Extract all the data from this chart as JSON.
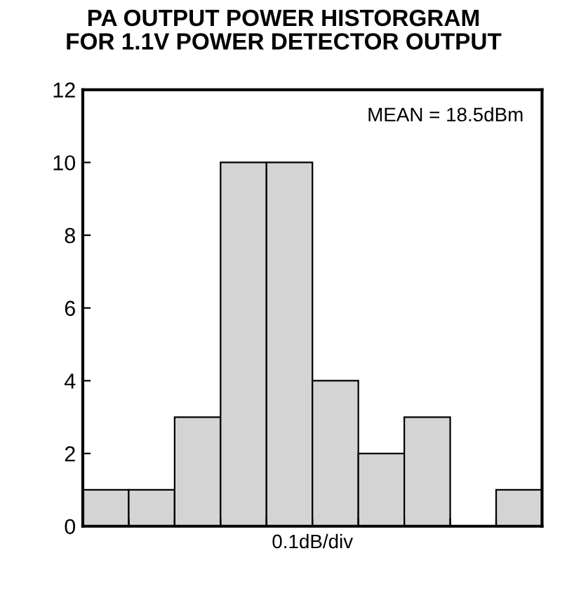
{
  "chart_data": {
    "type": "bar",
    "title": "PA OUTPUT POWER HISTORGRAM\nFOR 1.1V POWER DETECTOR OUTPUT",
    "xlabel": "0.1dB/div",
    "categories": [
      null,
      null,
      null,
      null,
      null,
      null,
      null,
      null,
      null,
      null
    ],
    "values": [
      1,
      1,
      3,
      10,
      10,
      4,
      2,
      3,
      0,
      1
    ],
    "color": "#d4d4d4",
    "ylim": [
      0,
      12
    ],
    "yticks": [
      0,
      2,
      4,
      6,
      8,
      10,
      12
    ],
    "tick_labels": "y",
    "grid": false,
    "annotations": [
      "MEAN = 18.5dBm"
    ]
  }
}
